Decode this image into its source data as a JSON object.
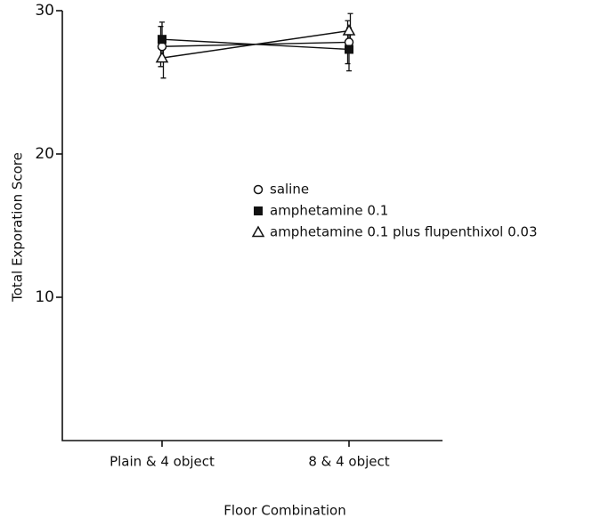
{
  "chart_data": {
    "type": "line",
    "xlabel": "Floor Combination",
    "ylabel": "Total Exporation Score",
    "categories": [
      "Plain & 4 object",
      "8 & 4 object"
    ],
    "ylim": [
      0,
      30
    ],
    "yticks": [
      10,
      20,
      30
    ],
    "legend": "center",
    "series": [
      {
        "name": "saline",
        "color": "#111111",
        "marker": "open-circle",
        "values": [
          27.5,
          27.8
        ],
        "errors": [
          1.4,
          1.5
        ]
      },
      {
        "name": "amphetamine 0.1",
        "color": "#111111",
        "marker": "filled-square",
        "values": [
          28.0,
          27.3
        ],
        "errors": [
          1.2,
          1.5
        ]
      },
      {
        "name": "amphetamine 0.1 plus flupenthixol 0.03",
        "color": "#111111",
        "marker": "open-triangle",
        "values": [
          26.7,
          28.6
        ],
        "errors": [
          1.4,
          1.2
        ]
      }
    ]
  }
}
